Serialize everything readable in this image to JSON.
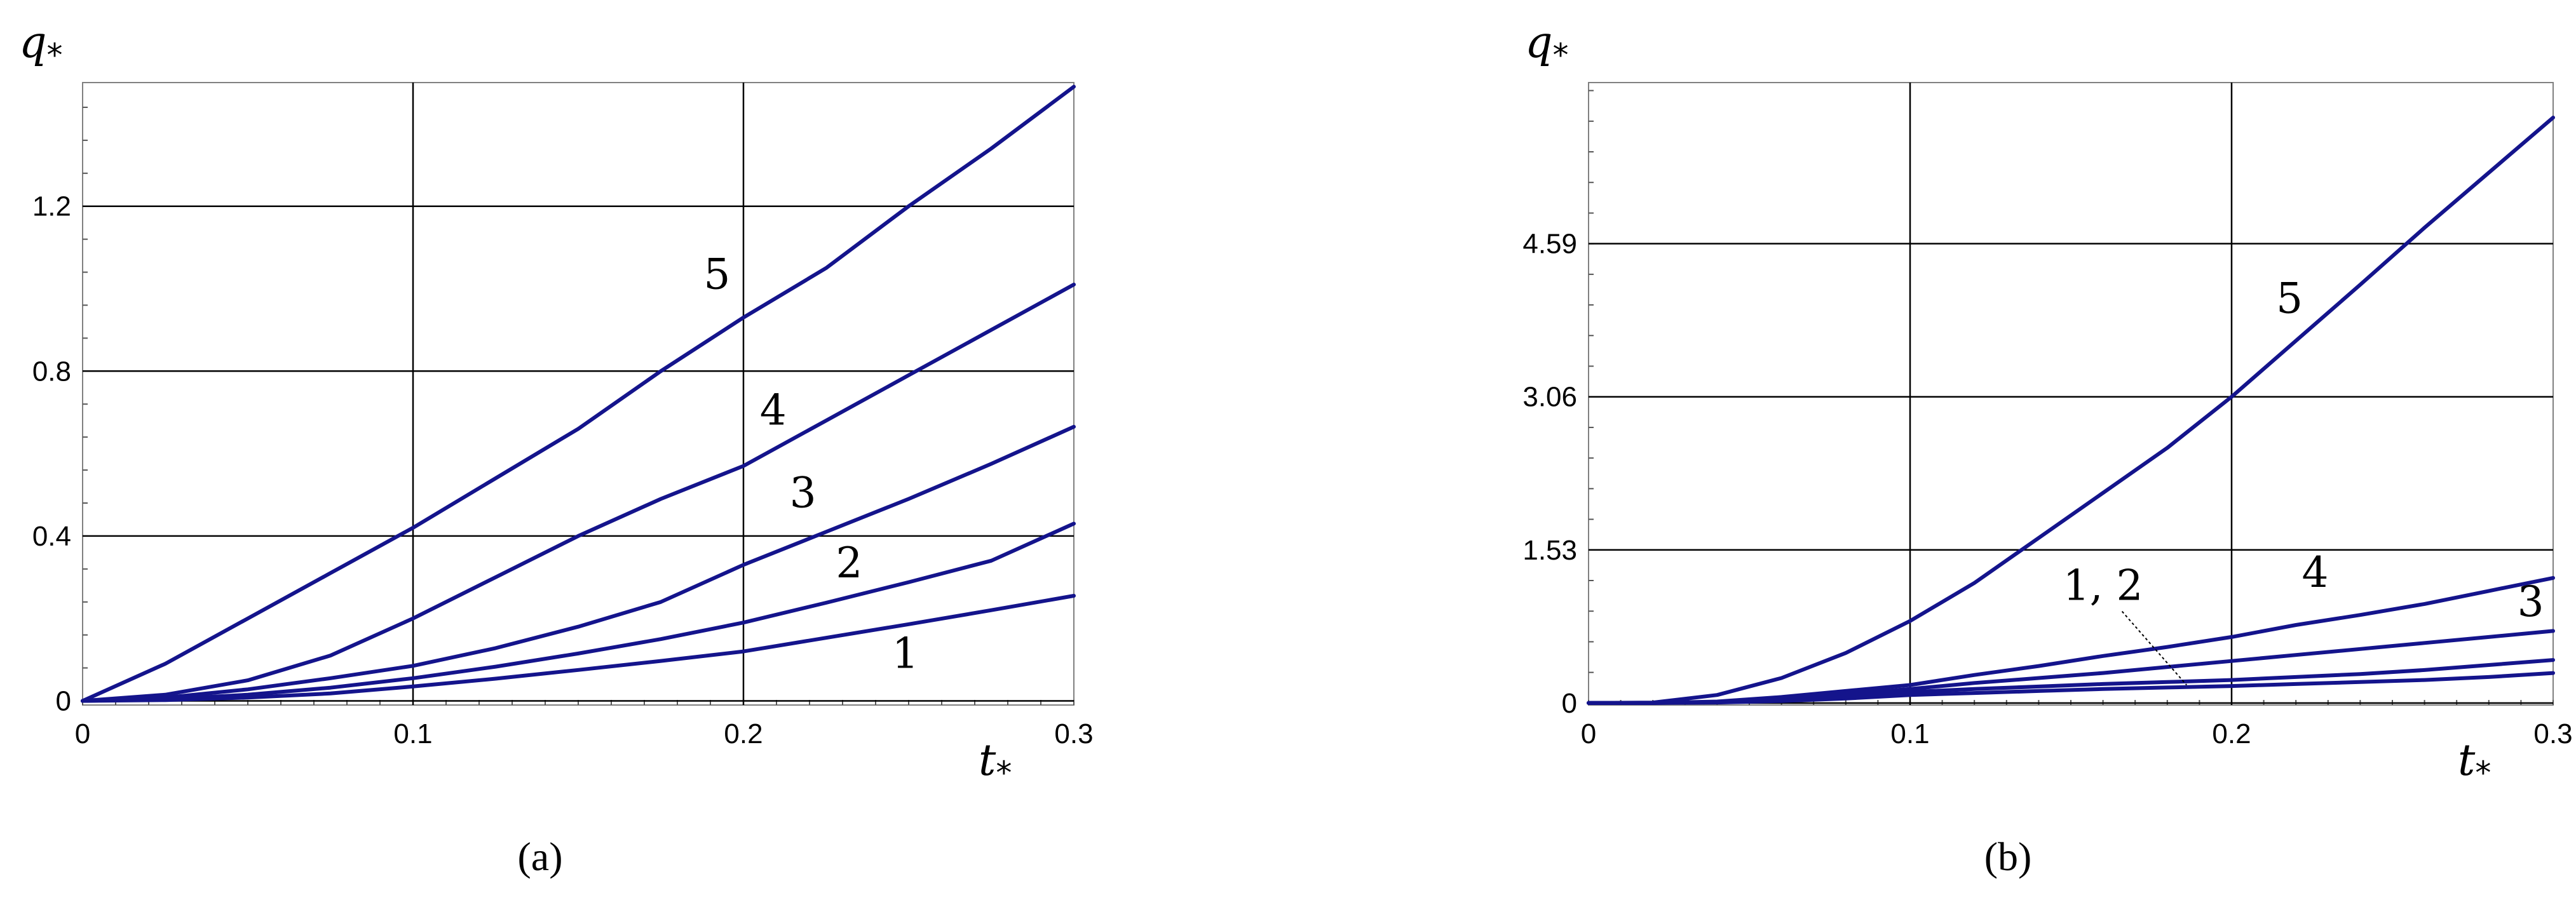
{
  "chart_data": [
    {
      "type": "line",
      "panel": "(a)",
      "xlabel": "t",
      "xlabel_sub": "*",
      "ylabel": "q",
      "ylabel_sub": "*",
      "xlim": [
        0,
        0.3
      ],
      "ylim": [
        -0.01,
        1.5
      ],
      "grid": true,
      "x_ticks": [
        0,
        0.1,
        0.2,
        0.3
      ],
      "x_tick_labels": [
        "0",
        "0.1",
        "0.2",
        "0.3"
      ],
      "y_ticks": [
        0,
        0.4,
        0.8,
        1.2
      ],
      "y_tick_labels": [
        "0",
        "0.4",
        "0.8",
        "1.2"
      ],
      "x": [
        0,
        0.025,
        0.05,
        0.075,
        0.1,
        0.125,
        0.15,
        0.175,
        0.2,
        0.225,
        0.25,
        0.275,
        0.3
      ],
      "series": [
        {
          "name": "1",
          "values": [
            0,
            0.002,
            0.008,
            0.018,
            0.035,
            0.054,
            0.075,
            0.097,
            0.12,
            0.153,
            0.186,
            0.22,
            0.255
          ]
        },
        {
          "name": "2",
          "values": [
            0,
            0.004,
            0.015,
            0.032,
            0.055,
            0.083,
            0.115,
            0.15,
            0.19,
            0.238,
            0.288,
            0.34,
            0.43
          ]
        },
        {
          "name": "3",
          "values": [
            0,
            0.008,
            0.028,
            0.055,
            0.085,
            0.128,
            0.18,
            0.24,
            0.33,
            0.41,
            0.49,
            0.575,
            0.665
          ]
        },
        {
          "name": "4",
          "values": [
            0,
            0.015,
            0.05,
            0.11,
            0.2,
            0.3,
            0.4,
            0.49,
            0.57,
            0.68,
            0.79,
            0.9,
            1.01
          ]
        },
        {
          "name": "5",
          "values": [
            0,
            0.09,
            0.2,
            0.31,
            0.42,
            0.54,
            0.66,
            0.8,
            0.93,
            1.05,
            1.2,
            1.34,
            1.49
          ]
        }
      ],
      "labels": [
        {
          "text": "5",
          "x": 0.192,
          "y": 1.0
        },
        {
          "text": "4",
          "x": 0.209,
          "y": 0.67
        },
        {
          "text": "3",
          "x": 0.218,
          "y": 0.47
        },
        {
          "text": "2",
          "x": 0.232,
          "y": 0.3
        },
        {
          "text": "1",
          "x": 0.249,
          "y": 0.08
        }
      ]
    },
    {
      "type": "line",
      "panel": "(b)",
      "xlabel": "t",
      "xlabel_sub": "*",
      "ylabel": "q",
      "ylabel_sub": "*",
      "xlim": [
        0,
        0.3
      ],
      "ylim": [
        -0.02,
        6.2
      ],
      "grid": true,
      "x_ticks": [
        0,
        0.1,
        0.2,
        0.3
      ],
      "x_tick_labels": [
        "0",
        "0.1",
        "0.2",
        "0.3"
      ],
      "y_ticks": [
        0,
        1.53,
        3.06,
        4.59
      ],
      "y_tick_labels": [
        "0",
        "1.53",
        "3.06",
        "4.59"
      ],
      "x": [
        0,
        0.02,
        0.04,
        0.06,
        0.08,
        0.1,
        0.12,
        0.14,
        0.16,
        0.18,
        0.2,
        0.22,
        0.24,
        0.26,
        0.28,
        0.3
      ],
      "series": [
        {
          "name": "1",
          "values": [
            0,
            0,
            0.005,
            0.02,
            0.045,
            0.08,
            0.1,
            0.12,
            0.14,
            0.155,
            0.17,
            0.19,
            0.21,
            0.23,
            0.26,
            0.3
          ]
        },
        {
          "name": "2",
          "values": [
            0,
            0,
            0.007,
            0.03,
            0.065,
            0.11,
            0.14,
            0.165,
            0.19,
            0.21,
            0.23,
            0.26,
            0.29,
            0.33,
            0.38,
            0.43
          ]
        },
        {
          "name": "3",
          "values": [
            0,
            0,
            0.01,
            0.04,
            0.09,
            0.14,
            0.2,
            0.25,
            0.3,
            0.36,
            0.42,
            0.48,
            0.54,
            0.6,
            0.66,
            0.72
          ]
        },
        {
          "name": "4",
          "values": [
            0,
            0,
            0.015,
            0.06,
            0.12,
            0.18,
            0.28,
            0.37,
            0.47,
            0.56,
            0.66,
            0.78,
            0.88,
            0.99,
            1.12,
            1.25
          ]
        },
        {
          "name": "5",
          "values": [
            0,
            0.005,
            0.08,
            0.25,
            0.5,
            0.82,
            1.2,
            1.65,
            2.1,
            2.55,
            3.06,
            3.62,
            4.18,
            4.75,
            5.3,
            5.85
          ]
        }
      ],
      "labels": [
        {
          "text": "5",
          "x": 0.218,
          "y": 3.9
        },
        {
          "text": "4",
          "x": 0.226,
          "y": 1.16
        },
        {
          "text": "3",
          "x": 0.293,
          "y": 0.87
        },
        {
          "text": "1, 2",
          "x": 0.16,
          "y": 1.03
        }
      ]
    }
  ],
  "captions": [
    "(a)",
    "(b)"
  ]
}
